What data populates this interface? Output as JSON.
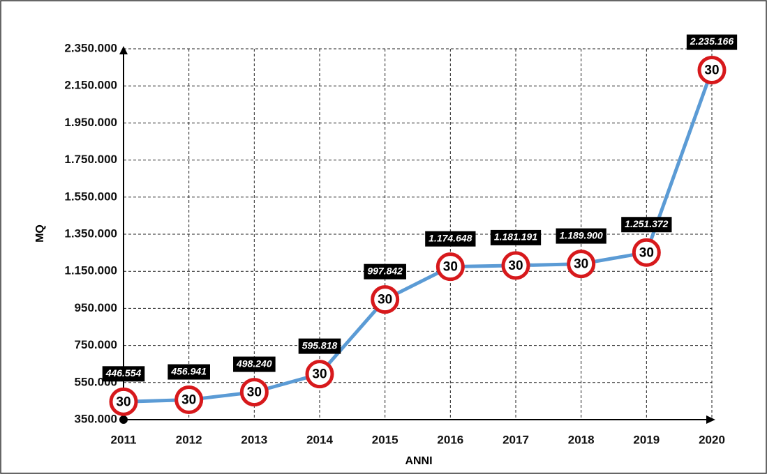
{
  "chart_data": {
    "type": "line",
    "x_label": "ANNI",
    "y_label": "MQ",
    "categories": [
      "2011",
      "2012",
      "2013",
      "2014",
      "2015",
      "2016",
      "2017",
      "2018",
      "2019",
      "2020"
    ],
    "series": [
      {
        "name": "MQ",
        "color": "#5b9bd5",
        "values": [
          446554,
          456941,
          498240,
          595818,
          997842,
          1174648,
          1181191,
          1189900,
          1251372,
          2235166
        ],
        "value_labels": [
          "446.554",
          "456.941",
          "498.240",
          "595.818",
          "997.842",
          "1.174.648",
          "1.181.191",
          "1.189.900",
          "1.251.372",
          "2.235.166"
        ]
      }
    ],
    "marker_text": "30",
    "marker_color": "#d7191c",
    "ylim": [
      350000,
      2350000
    ],
    "yticks": [
      {
        "value": 350000,
        "label": "350.000"
      },
      {
        "value": 550000,
        "label": "550.000"
      },
      {
        "value": 750000,
        "label": "750.000"
      },
      {
        "value": 950000,
        "label": "950.000"
      },
      {
        "value": 1150000,
        "label": "1.150.000"
      },
      {
        "value": 1350000,
        "label": "1.350.000"
      },
      {
        "value": 1550000,
        "label": "1.550.000"
      },
      {
        "value": 1750000,
        "label": "1.750.000"
      },
      {
        "value": 1950000,
        "label": "1.950.000"
      },
      {
        "value": 2150000,
        "label": "2.150.000"
      },
      {
        "value": 2350000,
        "label": "2.350.000"
      }
    ],
    "grid": true
  }
}
